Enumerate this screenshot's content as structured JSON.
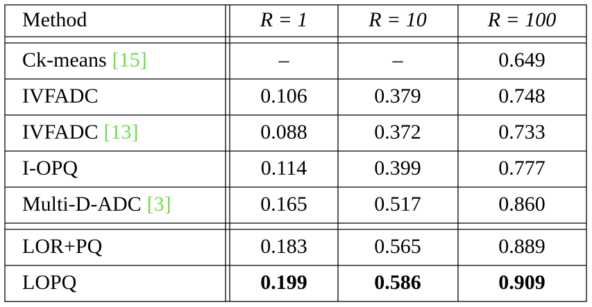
{
  "table": {
    "header": [
      "Method",
      "R = 1",
      "R = 10",
      "R = 100"
    ],
    "groups": [
      [
        {
          "method": "Ck-means",
          "cite": "[15]",
          "values": [
            "–",
            "–",
            "0.649"
          ]
        },
        {
          "method": "IVFADC",
          "values": [
            "0.106",
            "0.379",
            "0.748"
          ]
        },
        {
          "method": "IVFADC",
          "cite": "[13]",
          "values": [
            "0.088",
            "0.372",
            "0.733"
          ]
        },
        {
          "method": "I-OPQ",
          "values": [
            "0.114",
            "0.399",
            "0.777"
          ]
        },
        {
          "method": "Multi-D-ADC",
          "cite": "[3]",
          "values": [
            "0.165",
            "0.517",
            "0.860"
          ]
        }
      ],
      [
        {
          "method": "LOR+PQ",
          "values": [
            "0.183",
            "0.565",
            "0.889"
          ]
        },
        {
          "method": "LOPQ",
          "values": [
            "0.199",
            "0.586",
            "0.909"
          ],
          "bold": true
        }
      ]
    ]
  }
}
